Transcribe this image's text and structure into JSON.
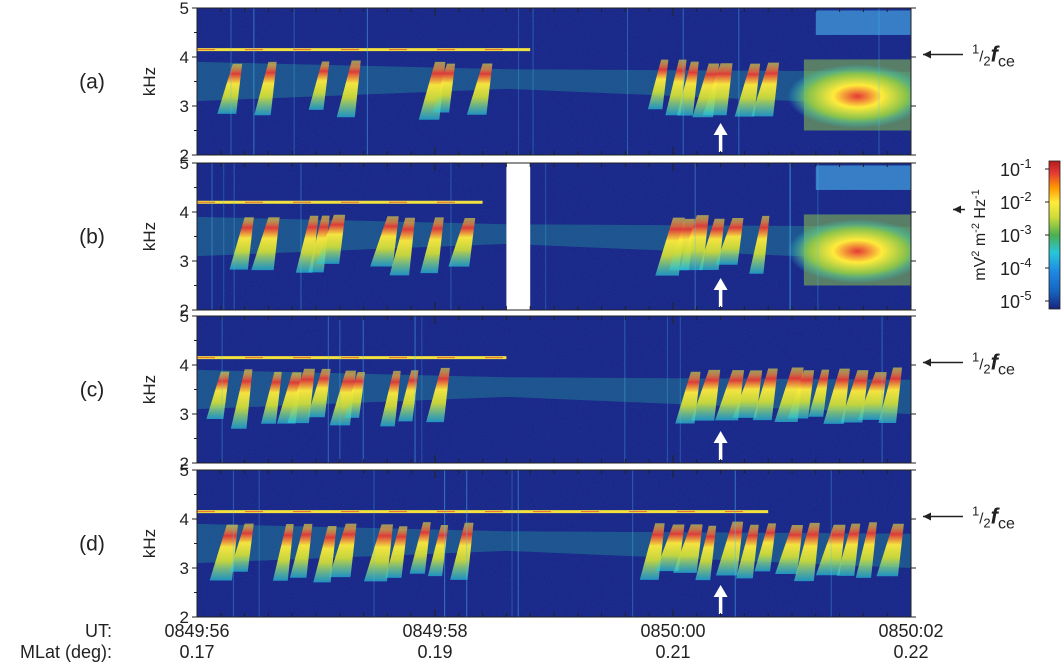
{
  "chart_data": {
    "type": "heatmap",
    "panels": [
      {
        "label": "(a)",
        "ylabel": "kHz",
        "yticks": [
          2,
          3,
          4,
          5
        ],
        "ylim": [
          2,
          5
        ],
        "harmonic_line_khz": 4.15,
        "harmonic_line_end_ut": "0849:58.8",
        "annotation": "½ fce",
        "arrow_time_ut": "0850:00.4",
        "chorus_times_s": [
          0.25,
          0.55,
          1.0,
          1.25,
          1.95,
          2.05,
          2.35,
          3.85,
          4.0,
          4.1,
          4.25,
          4.35,
          4.6,
          4.75
        ],
        "intense_band_from_s": 5.1
      },
      {
        "label": "(b)",
        "ylabel": "kHz",
        "yticks": [
          2,
          3,
          4,
          5
        ],
        "ylim": [
          2,
          5
        ],
        "harmonic_line_khz": 4.2,
        "harmonic_line_end_ut": "0849:58.4",
        "annotation": "",
        "data_gap_ut": [
          "0849:58.6",
          "0849:58.8"
        ],
        "arrow_time_ut": "0850:00.4",
        "chorus_times_s": [
          0.35,
          0.55,
          0.9,
          1.0,
          1.1,
          1.55,
          1.7,
          1.95,
          2.2,
          3.95,
          4.05,
          4.15,
          4.3,
          4.45,
          4.7
        ],
        "intense_band_from_s": 5.1
      },
      {
        "label": "(c)",
        "ylabel": "kHz",
        "yticks": [
          2,
          3,
          4,
          5
        ],
        "ylim": [
          2,
          5
        ],
        "harmonic_line_khz": 4.15,
        "harmonic_line_end_ut": "0849:58.6",
        "annotation": "½ fce",
        "arrow_time_ut": "0850:00.4",
        "chorus_times_s": [
          0.15,
          0.35,
          0.6,
          0.75,
          0.85,
          1.0,
          1.2,
          1.3,
          1.6,
          1.75,
          2.0,
          4.1,
          4.25,
          4.45,
          4.6,
          4.75,
          4.95,
          5.05,
          5.2,
          5.35,
          5.5,
          5.65,
          5.8
        ],
        "intense_band_from_s": null
      },
      {
        "label": "(d)",
        "ylabel": "kHz",
        "yticks": [
          2,
          3,
          4,
          5
        ],
        "ylim": [
          2,
          5
        ],
        "harmonic_line_khz": 4.15,
        "harmonic_line_end_ut": "0850:00.8",
        "annotation": "½ fce",
        "arrow_time_ut": "0850:00.4",
        "chorus_times_s": [
          0.2,
          0.35,
          0.7,
          0.85,
          1.05,
          1.2,
          1.5,
          1.65,
          1.85,
          2.0,
          2.2,
          3.8,
          3.95,
          4.1,
          4.25,
          4.45,
          4.6,
          4.75,
          4.95,
          5.1,
          5.3,
          5.45,
          5.6,
          5.8
        ],
        "intense_band_from_s": null
      }
    ],
    "x_axis": {
      "labels": [
        "UT:",
        "MLat (deg):"
      ],
      "ticks": [
        {
          "ut": "0849:56",
          "mlat": "0.17"
        },
        {
          "ut": "0849:58",
          "mlat": "0.19"
        },
        {
          "ut": "0850:00",
          "mlat": "0.21"
        },
        {
          "ut": "0850:02",
          "mlat": "0.22"
        }
      ],
      "range_s": [
        0,
        6
      ]
    },
    "colorbar": {
      "label": "mV² m⁻² Hz⁻¹",
      "ticks": [
        "10⁻¹",
        "10⁻²",
        "10⁻³",
        "10⁻⁴",
        "10⁻⁵"
      ],
      "scale": "log",
      "colors": [
        "#1a237e",
        "#1565c0",
        "#1e88e5",
        "#26c6da",
        "#4caf50",
        "#cddc39",
        "#ffeb3b",
        "#ff9800",
        "#e53935",
        "#b71c1c"
      ]
    },
    "background_color": "#1b2a8a"
  }
}
